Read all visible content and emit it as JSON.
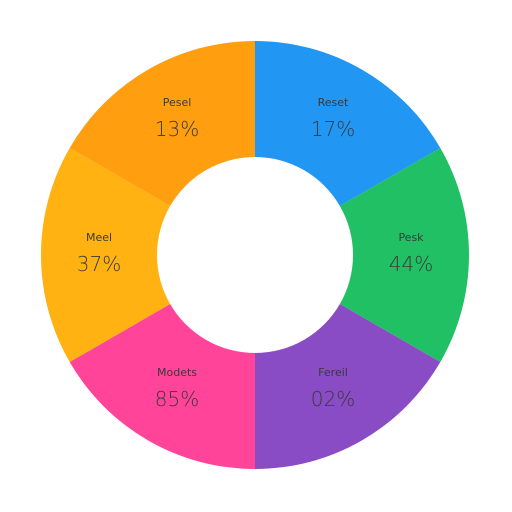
{
  "chart_data": {
    "type": "pie",
    "variant": "donut",
    "segments": [
      {
        "label": "Pesel",
        "value_text": "13%",
        "value": 13,
        "color": "#FF9E0F"
      },
      {
        "label": "Reset",
        "value_text": "17%",
        "value": 17,
        "color": "#2196F3"
      },
      {
        "label": "Pesk",
        "value_text": "44%",
        "value": 44,
        "color": "#22C064"
      },
      {
        "label": "Fereil",
        "value_text": "02%",
        "value": 2,
        "color": "#8A4CC5"
      },
      {
        "label": "Modets",
        "value_text": "85%",
        "value": 85,
        "color": "#FF4499"
      },
      {
        "label": "Meel",
        "value_text": "37%",
        "value": 37,
        "color": "#FFB211"
      }
    ],
    "legend": "none"
  }
}
